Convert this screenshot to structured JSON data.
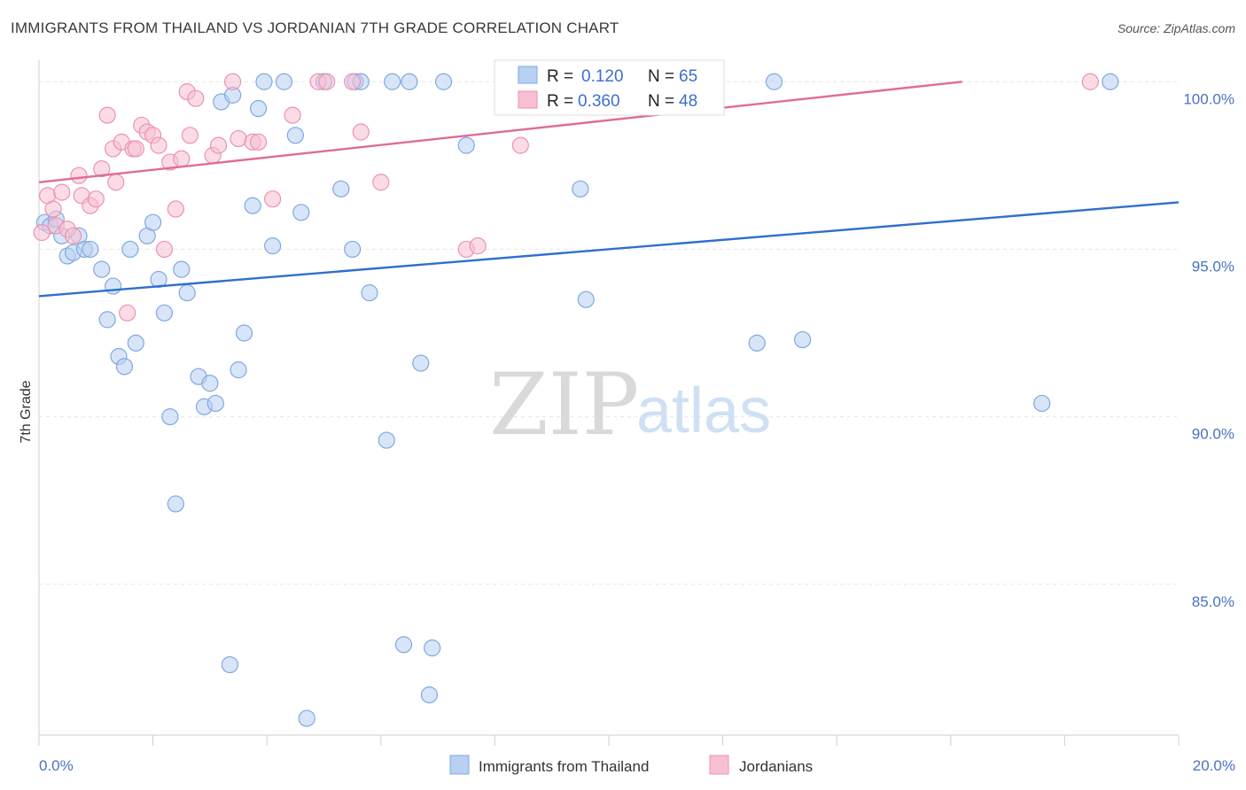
{
  "header": {
    "title": "IMMIGRANTS FROM THAILAND VS JORDANIAN 7TH GRADE CORRELATION CHART",
    "source": "Source: ZipAtlas.com"
  },
  "watermark": {
    "zip": "ZIP",
    "atlas": "atlas"
  },
  "chart_data": {
    "type": "scatter",
    "title": "IMMIGRANTS FROM THAILAND VS JORDANIAN 7TH GRADE CORRELATION CHART",
    "xlabel": "",
    "ylabel": "7th Grade",
    "xlim": [
      0,
      20
    ],
    "ylim": [
      80.5,
      100.8
    ],
    "x_tick_labels": {
      "min": "0.0%",
      "max": "20.0%"
    },
    "y_ticks": [
      {
        "value": 85,
        "label": "85.0%"
      },
      {
        "value": 90,
        "label": "90.0%"
      },
      {
        "value": 95,
        "label": "95.0%"
      },
      {
        "value": 100,
        "label": "100.0%"
      }
    ],
    "grid": true,
    "legend_position": "top-center",
    "colors": {
      "thailand_fill": "#b8d0f2",
      "thailand_stroke": "#7fa8e0",
      "thailand_line": "#2f6fcc",
      "jordan_fill": "#f7c0d2",
      "jordan_stroke": "#ec92b1",
      "jordan_line": "#e06c96",
      "axis_label": "#4a72c4"
    },
    "stats": [
      {
        "r_label": "R =",
        "r_value": "0.120",
        "n_label": "N =",
        "n_value": "65"
      },
      {
        "r_label": "R =",
        "r_value": "0.360",
        "n_label": "N =",
        "n_value": "48"
      }
    ],
    "series": [
      {
        "name": "Immigrants from Thailand",
        "trend": {
          "x": [
            0,
            20
          ],
          "y": [
            93.6,
            96.4
          ]
        },
        "points": [
          [
            0.1,
            95.8
          ],
          [
            0.2,
            95.7
          ],
          [
            0.3,
            95.9
          ],
          [
            0.4,
            95.4
          ],
          [
            0.5,
            94.8
          ],
          [
            0.6,
            94.9
          ],
          [
            0.7,
            95.4
          ],
          [
            0.8,
            95.0
          ],
          [
            0.9,
            95.0
          ],
          [
            1.1,
            94.4
          ],
          [
            1.3,
            93.9
          ],
          [
            1.2,
            92.9
          ],
          [
            1.4,
            91.8
          ],
          [
            1.5,
            91.5
          ],
          [
            1.6,
            95.0
          ],
          [
            1.7,
            92.2
          ],
          [
            1.9,
            95.4
          ],
          [
            2.0,
            95.8
          ],
          [
            2.1,
            94.1
          ],
          [
            2.2,
            93.1
          ],
          [
            2.3,
            90.0
          ],
          [
            2.4,
            87.4
          ],
          [
            2.5,
            94.4
          ],
          [
            2.6,
            93.7
          ],
          [
            2.8,
            91.2
          ],
          [
            2.9,
            90.3
          ],
          [
            3.0,
            91.0
          ],
          [
            3.1,
            90.4
          ],
          [
            3.2,
            99.4
          ],
          [
            3.35,
            82.6
          ],
          [
            3.4,
            99.6
          ],
          [
            3.5,
            91.4
          ],
          [
            3.6,
            92.5
          ],
          [
            3.75,
            96.3
          ],
          [
            3.85,
            99.2
          ],
          [
            3.95,
            100.0
          ],
          [
            4.1,
            95.1
          ],
          [
            4.3,
            100.0
          ],
          [
            4.5,
            98.4
          ],
          [
            4.6,
            96.1
          ],
          [
            4.7,
            81.0
          ],
          [
            5.0,
            100.0
          ],
          [
            5.3,
            96.8
          ],
          [
            5.5,
            95.0
          ],
          [
            5.55,
            100.0
          ],
          [
            5.65,
            100.0
          ],
          [
            5.8,
            93.7
          ],
          [
            6.1,
            89.3
          ],
          [
            6.2,
            100.0
          ],
          [
            6.4,
            83.2
          ],
          [
            6.5,
            100.0
          ],
          [
            6.7,
            91.6
          ],
          [
            6.85,
            81.7
          ],
          [
            6.9,
            83.1
          ],
          [
            7.1,
            100.0
          ],
          [
            7.5,
            98.1
          ],
          [
            8.5,
            100.0
          ],
          [
            9.5,
            96.8
          ],
          [
            9.6,
            93.5
          ],
          [
            11.3,
            100.0
          ],
          [
            12.6,
            92.2
          ],
          [
            12.9,
            100.0
          ],
          [
            13.4,
            92.3
          ],
          [
            17.6,
            90.4
          ],
          [
            18.8,
            100.0
          ]
        ]
      },
      {
        "name": "Jordanians",
        "trend": {
          "x": [
            0,
            16.2
          ],
          "y": [
            97.0,
            100.0
          ]
        },
        "points": [
          [
            0.05,
            95.5
          ],
          [
            0.15,
            96.6
          ],
          [
            0.25,
            96.2
          ],
          [
            0.3,
            95.7
          ],
          [
            0.4,
            96.7
          ],
          [
            0.5,
            95.6
          ],
          [
            0.6,
            95.4
          ],
          [
            0.7,
            97.2
          ],
          [
            0.75,
            96.6
          ],
          [
            0.9,
            96.3
          ],
          [
            1.0,
            96.5
          ],
          [
            1.1,
            97.4
          ],
          [
            1.2,
            99.0
          ],
          [
            1.3,
            98.0
          ],
          [
            1.35,
            97.0
          ],
          [
            1.45,
            98.2
          ],
          [
            1.55,
            93.1
          ],
          [
            1.65,
            98.0
          ],
          [
            1.7,
            98.0
          ],
          [
            1.8,
            98.7
          ],
          [
            1.9,
            98.5
          ],
          [
            2.0,
            98.4
          ],
          [
            2.1,
            98.1
          ],
          [
            2.2,
            95.0
          ],
          [
            2.3,
            97.6
          ],
          [
            2.4,
            96.2
          ],
          [
            2.5,
            97.7
          ],
          [
            2.6,
            99.7
          ],
          [
            2.65,
            98.4
          ],
          [
            2.75,
            99.5
          ],
          [
            3.05,
            97.8
          ],
          [
            3.15,
            98.1
          ],
          [
            3.4,
            100.0
          ],
          [
            3.5,
            98.3
          ],
          [
            3.75,
            98.2
          ],
          [
            3.85,
            98.2
          ],
          [
            4.1,
            96.5
          ],
          [
            4.45,
            99.0
          ],
          [
            4.9,
            100.0
          ],
          [
            5.05,
            100.0
          ],
          [
            5.5,
            100.0
          ],
          [
            5.65,
            98.5
          ],
          [
            6.0,
            97.0
          ],
          [
            7.5,
            95.0
          ],
          [
            7.7,
            95.1
          ],
          [
            8.2,
            100.0
          ],
          [
            8.45,
            98.1
          ],
          [
            18.45,
            100.0
          ]
        ]
      }
    ]
  }
}
